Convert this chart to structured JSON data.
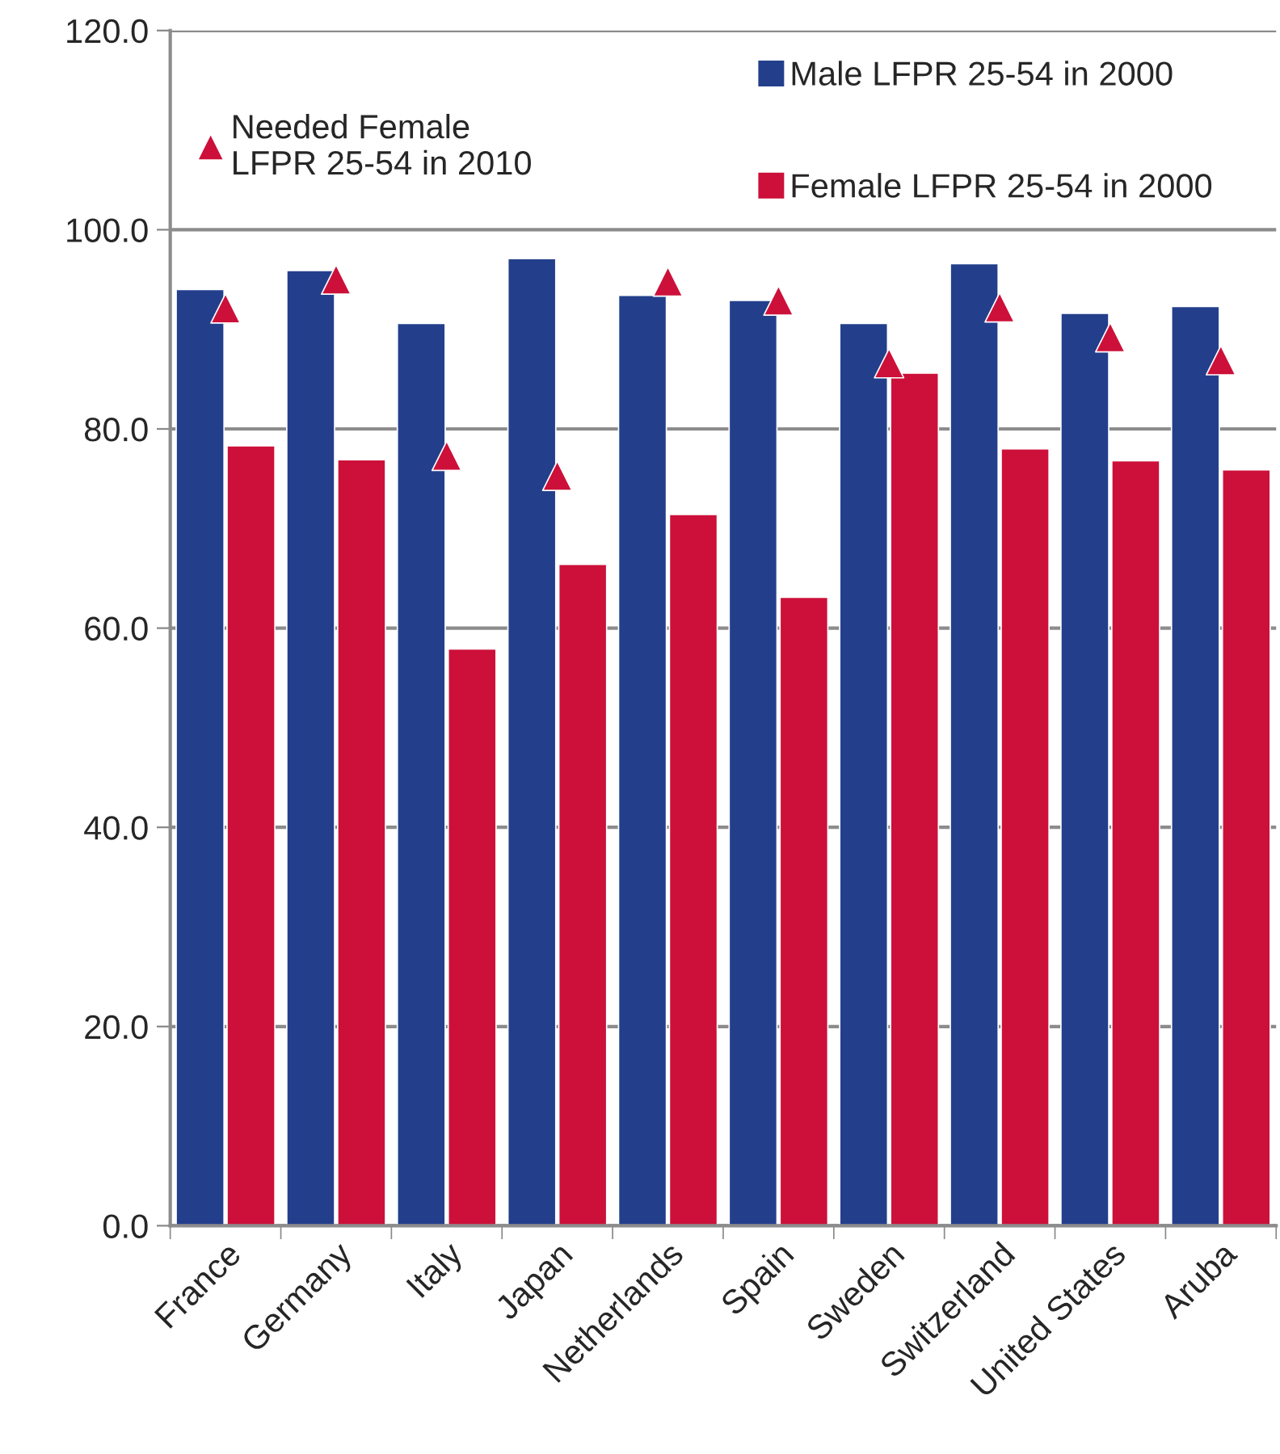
{
  "chart_data": {
    "type": "bar",
    "categories": [
      "France",
      "Germany",
      "Italy",
      "Japan",
      "Netherlands",
      "Spain",
      "Sweden",
      "Switzerland",
      "United States",
      "Aruba"
    ],
    "series": [
      {
        "name": "Male LFPR 25-54 in 2000",
        "color": "#233f8c",
        "values": [
          94.0,
          95.9,
          90.6,
          97.1,
          93.4,
          92.9,
          90.6,
          96.6,
          91.6,
          92.3
        ]
      },
      {
        "name": "Female LFPR 25-54 in 2000",
        "color": "#cc103a",
        "values": [
          78.3,
          76.9,
          57.9,
          66.4,
          71.4,
          63.1,
          85.6,
          78.0,
          76.8,
          75.9
        ]
      },
      {
        "name": "Needed Female\nLFPR 25-54 in 2010",
        "type": "scatter",
        "marker": "triangle",
        "color": "#cc103a",
        "values": [
          92.1,
          95.0,
          77.3,
          75.3,
          94.8,
          92.9,
          86.6,
          92.2,
          89.2,
          86.9
        ]
      }
    ],
    "ylim": [
      0,
      120
    ],
    "yticks": [
      {
        "value": 0,
        "label": "0.0"
      },
      {
        "value": 20,
        "label": "20.0"
      },
      {
        "value": 40,
        "label": "40.0"
      },
      {
        "value": 60,
        "label": "60.0"
      },
      {
        "value": 80,
        "label": "80.0"
      },
      {
        "value": 100,
        "label": "100.0"
      },
      {
        "value": 120,
        "label": "120.0"
      }
    ],
    "grid": "y",
    "legend": "top"
  }
}
